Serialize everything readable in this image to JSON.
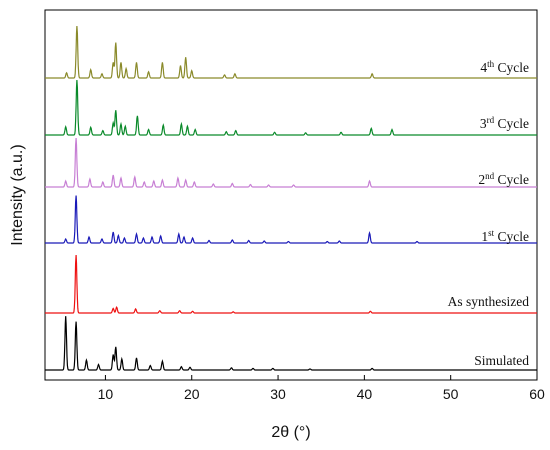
{
  "chart_data": {
    "type": "line",
    "xlabel": "2θ (°)",
    "ylabel": "Intensity (a.u.)",
    "xlim": [
      3,
      60
    ],
    "x_ticks": [
      "10",
      "20",
      "30",
      "40",
      "50",
      "60"
    ],
    "x_tick_values": [
      10,
      20,
      30,
      40,
      50,
      60
    ],
    "y_ticks_shown": false,
    "grid": false,
    "legend": "inline-right",
    "series": [
      {
        "label_main": "Simulated",
        "label_sup": "",
        "label_rest": "",
        "color": "#000000",
        "peaks": [
          [
            5.4,
            0.98
          ],
          [
            6.6,
            0.88
          ],
          [
            7.8,
            0.18
          ],
          [
            9.2,
            0.1
          ],
          [
            10.9,
            0.28
          ],
          [
            11.2,
            0.42
          ],
          [
            11.9,
            0.2
          ],
          [
            13.6,
            0.22
          ],
          [
            15.2,
            0.08
          ],
          [
            16.6,
            0.16
          ],
          [
            18.8,
            0.06
          ],
          [
            19.8,
            0.05
          ],
          [
            24.6,
            0.04
          ],
          [
            27.1,
            0.03
          ],
          [
            29.4,
            0.03
          ],
          [
            33.7,
            0.02
          ],
          [
            40.9,
            0.03
          ]
        ]
      },
      {
        "label_main": "As synthesized",
        "label_sup": "",
        "label_rest": "",
        "color": "#ee1111",
        "peaks": [
          [
            6.6,
            1.0
          ],
          [
            10.9,
            0.08
          ],
          [
            11.3,
            0.1
          ],
          [
            13.5,
            0.07
          ],
          [
            16.3,
            0.04
          ],
          [
            18.6,
            0.04
          ],
          [
            20.1,
            0.03
          ],
          [
            24.8,
            0.02
          ],
          [
            40.7,
            0.03
          ]
        ]
      },
      {
        "label_main": "1",
        "label_sup": "st",
        "label_rest": " Cycle",
        "color": "#1a1ab8",
        "peaks": [
          [
            5.4,
            0.08
          ],
          [
            6.6,
            0.95
          ],
          [
            8.1,
            0.12
          ],
          [
            9.6,
            0.08
          ],
          [
            10.9,
            0.22
          ],
          [
            11.5,
            0.15
          ],
          [
            12.2,
            0.1
          ],
          [
            13.6,
            0.18
          ],
          [
            14.4,
            0.1
          ],
          [
            15.4,
            0.12
          ],
          [
            16.4,
            0.14
          ],
          [
            18.5,
            0.18
          ],
          [
            19.1,
            0.12
          ],
          [
            20.1,
            0.1
          ],
          [
            22.0,
            0.05
          ],
          [
            24.7,
            0.06
          ],
          [
            26.6,
            0.05
          ],
          [
            28.4,
            0.04
          ],
          [
            31.2,
            0.03
          ],
          [
            35.7,
            0.03
          ],
          [
            37.1,
            0.04
          ],
          [
            40.6,
            0.2
          ],
          [
            46.1,
            0.03
          ]
        ]
      },
      {
        "label_main": "2",
        "label_sup": "nd",
        "label_rest": " Cycle",
        "color": "#c77fd4",
        "peaks": [
          [
            5.4,
            0.12
          ],
          [
            6.6,
            0.98
          ],
          [
            8.2,
            0.16
          ],
          [
            9.7,
            0.1
          ],
          [
            10.9,
            0.24
          ],
          [
            11.8,
            0.18
          ],
          [
            13.4,
            0.2
          ],
          [
            14.5,
            0.1
          ],
          [
            15.6,
            0.12
          ],
          [
            16.6,
            0.14
          ],
          [
            18.4,
            0.18
          ],
          [
            19.3,
            0.14
          ],
          [
            20.3,
            0.1
          ],
          [
            22.5,
            0.06
          ],
          [
            24.7,
            0.07
          ],
          [
            26.8,
            0.05
          ],
          [
            28.9,
            0.04
          ],
          [
            31.8,
            0.04
          ],
          [
            40.6,
            0.12
          ]
        ]
      },
      {
        "label_main": "3",
        "label_sup": "rd",
        "label_rest": " Cycle",
        "color": "#0a8a2a",
        "peaks": [
          [
            5.4,
            0.15
          ],
          [
            6.7,
            1.0
          ],
          [
            8.3,
            0.14
          ],
          [
            9.7,
            0.08
          ],
          [
            10.9,
            0.22
          ],
          [
            11.2,
            0.45
          ],
          [
            11.8,
            0.2
          ],
          [
            12.3,
            0.16
          ],
          [
            13.7,
            0.35
          ],
          [
            15.0,
            0.1
          ],
          [
            16.7,
            0.18
          ],
          [
            18.8,
            0.2
          ],
          [
            19.5,
            0.16
          ],
          [
            20.4,
            0.1
          ],
          [
            24.0,
            0.06
          ],
          [
            25.1,
            0.08
          ],
          [
            29.6,
            0.05
          ],
          [
            33.2,
            0.04
          ],
          [
            37.3,
            0.05
          ],
          [
            40.8,
            0.12
          ],
          [
            43.2,
            0.1
          ]
        ]
      },
      {
        "label_main": "4",
        "label_sup": "th",
        "label_rest": " Cycle",
        "color": "#8a8a2a",
        "peaks": [
          [
            5.5,
            0.1
          ],
          [
            6.7,
            1.0
          ],
          [
            8.3,
            0.16
          ],
          [
            9.6,
            0.08
          ],
          [
            10.9,
            0.3
          ],
          [
            11.2,
            0.68
          ],
          [
            11.8,
            0.3
          ],
          [
            12.4,
            0.18
          ],
          [
            13.6,
            0.3
          ],
          [
            15.0,
            0.12
          ],
          [
            16.6,
            0.3
          ],
          [
            18.7,
            0.24
          ],
          [
            19.3,
            0.4
          ],
          [
            20.0,
            0.14
          ],
          [
            23.8,
            0.06
          ],
          [
            25.0,
            0.08
          ],
          [
            40.9,
            0.08
          ]
        ]
      }
    ]
  }
}
